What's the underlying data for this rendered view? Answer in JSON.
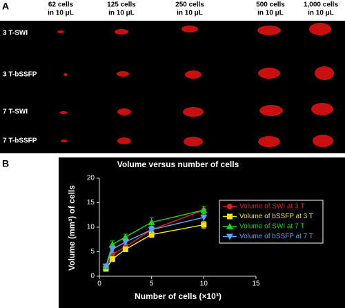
{
  "panel_a": {
    "label": "A",
    "columns": [
      [
        "62 cells",
        "in 10 μL"
      ],
      [
        "125 cells",
        "in 10 μL"
      ],
      [
        "250 cells",
        "in 10 μL"
      ],
      [
        "500 cells",
        "in 10 μL"
      ],
      [
        "1,000 cells",
        "in 10 μL"
      ]
    ],
    "rows": [
      "3 T-SWI",
      "3 T-bSSFP",
      "7 T-SWI",
      "7 T-bSSFP"
    ]
  },
  "chart_data": {
    "type": "line",
    "panel_label": "B",
    "title": "Volume versus number of cells",
    "x_label": "Number of cells (×10³)",
    "y_label": "Volume (mm³) of cells",
    "x": [
      0.625,
      1.25,
      2.5,
      5,
      10
    ],
    "series": [
      {
        "name": "Volume of SWI at 3 T",
        "color": "#e02020",
        "marker": "circle",
        "values": [
          1.5,
          4.5,
          6.0,
          9.5,
          13.5
        ],
        "errors": [
          0.5,
          0.6,
          0.6,
          0.7,
          0.8
        ]
      },
      {
        "name": "Volume of bSSFP at 3 T",
        "color": "#f0e020",
        "marker": "square",
        "values": [
          1.5,
          3.5,
          5.5,
          8.5,
          10.5
        ],
        "errors": [
          0.4,
          0.5,
          0.5,
          0.6,
          0.7
        ]
      },
      {
        "name": "Volume of SWI at 7 T",
        "color": "#20d020",
        "marker": "triangle",
        "values": [
          2.0,
          6.5,
          8.0,
          11.0,
          13.5
        ],
        "errors": [
          0.5,
          0.7,
          0.6,
          0.9,
          0.8
        ]
      },
      {
        "name": "Volume of bSSFP at 7 T",
        "color": "#60a0f0",
        "marker": "triangle-down",
        "values": [
          2.0,
          5.5,
          7.0,
          9.5,
          12.0
        ],
        "errors": [
          0.5,
          0.6,
          0.6,
          0.7,
          0.8
        ]
      }
    ],
    "xlim": [
      0,
      15
    ],
    "xticks": [
      0,
      5,
      10,
      15
    ],
    "ylim": [
      0,
      20
    ],
    "yticks": [
      0,
      5,
      10,
      15,
      20
    ],
    "legend": "right"
  }
}
